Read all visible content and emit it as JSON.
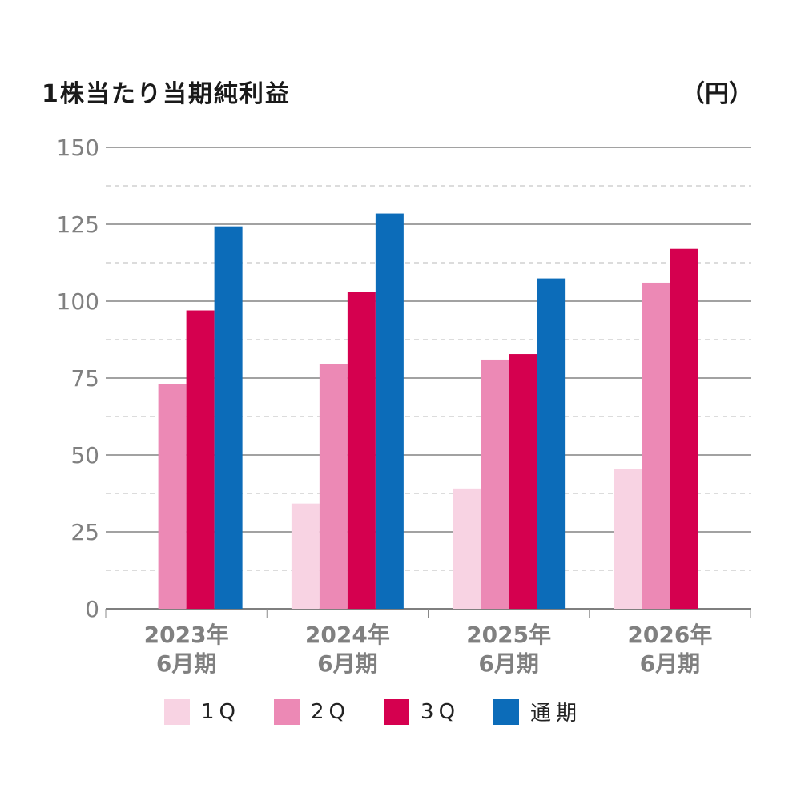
{
  "title": "1株当たり当期純利益",
  "unit": "（円）",
  "chart_data": {
    "type": "bar",
    "categories": [
      [
        "2023年",
        "6月期"
      ],
      [
        "2024年",
        "6月期"
      ],
      [
        "2025年",
        "6月期"
      ],
      [
        "2026年",
        "6月期"
      ]
    ],
    "series": [
      {
        "name": "1Q",
        "color": "#f8d3e3",
        "values": [
          null,
          34.2,
          39.1,
          45.5
        ]
      },
      {
        "name": "2Q",
        "color": "#ec89b5",
        "values": [
          73.0,
          79.6,
          81.0,
          106.0
        ]
      },
      {
        "name": "3Q",
        "color": "#d5004f",
        "values": [
          97.0,
          103.0,
          82.8,
          117.0
        ]
      },
      {
        "name": "通期",
        "color": "#0c6cb9",
        "values": [
          124.3,
          128.5,
          107.4,
          null
        ]
      }
    ],
    "ylim": [
      0,
      150
    ],
    "yticks": [
      0,
      25,
      50,
      75,
      100,
      125,
      150
    ],
    "grid": true
  }
}
